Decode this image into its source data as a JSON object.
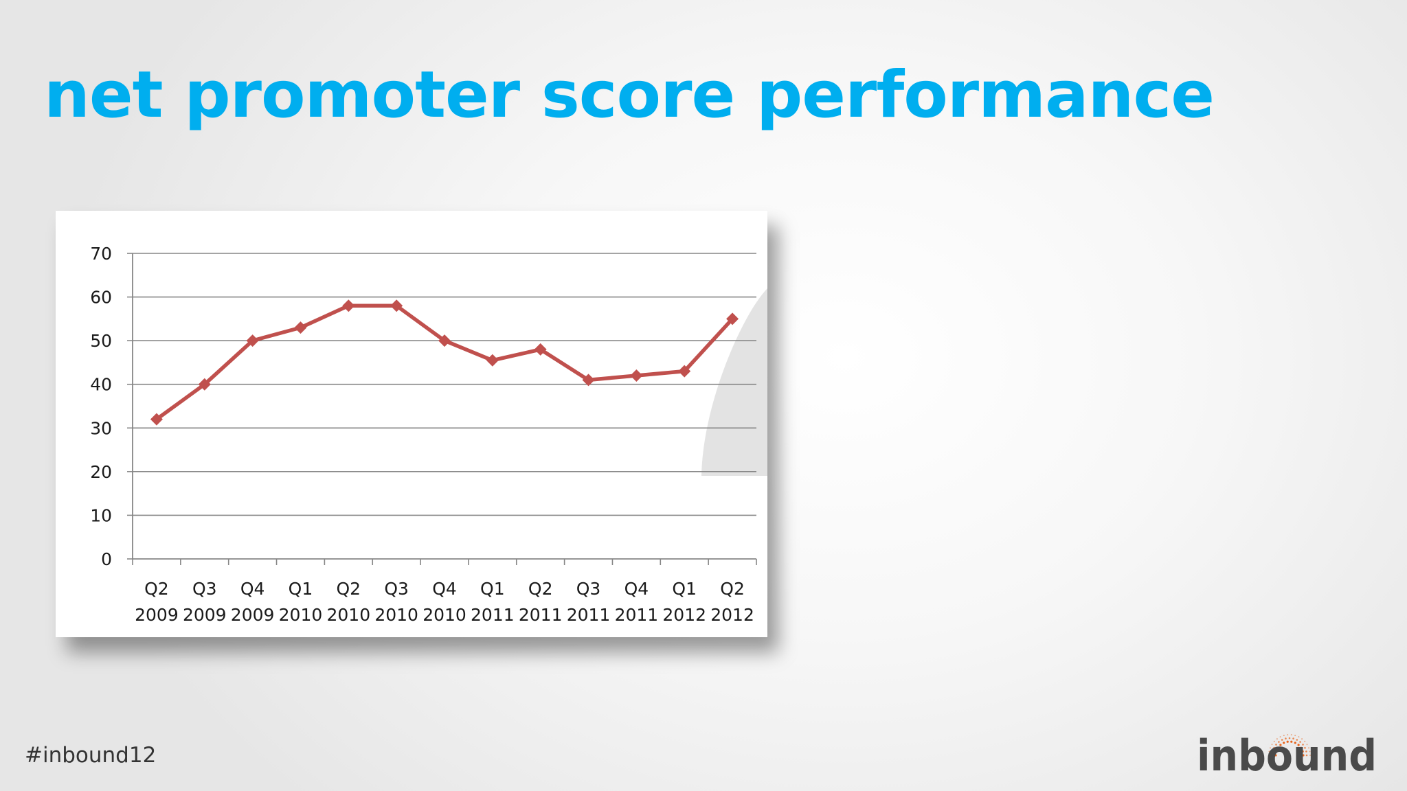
{
  "slide": {
    "title": "net promoter score performance",
    "hashtag": "#inbound12",
    "logo_text": "inbound"
  },
  "colors": {
    "title": "#00aeef",
    "series_line": "#c0504d",
    "gridline": "#868686",
    "logo_text": "#4a4a4a",
    "logo_accent": "#e8641b"
  },
  "chart_data": {
    "type": "line",
    "categories": [
      "Q2 2009",
      "Q3 2009",
      "Q4 2009",
      "Q1 2010",
      "Q2 2010",
      "Q3 2010",
      "Q4 2010",
      "Q1 2011",
      "Q2 2011",
      "Q3 2011",
      "Q4 2011",
      "Q1 2012",
      "Q2 2012"
    ],
    "category_lines": [
      [
        "Q2",
        "2009"
      ],
      [
        "Q3",
        "2009"
      ],
      [
        "Q4",
        "2009"
      ],
      [
        "Q1",
        "2010"
      ],
      [
        "Q2",
        "2010"
      ],
      [
        "Q3",
        "2010"
      ],
      [
        "Q4",
        "2010"
      ],
      [
        "Q1",
        "2011"
      ],
      [
        "Q2",
        "2011"
      ],
      [
        "Q3",
        "2011"
      ],
      [
        "Q4",
        "2011"
      ],
      [
        "Q1",
        "2012"
      ],
      [
        "Q2",
        "2012"
      ]
    ],
    "series": [
      {
        "values": [
          32,
          40,
          50,
          53,
          58,
          58,
          50,
          45.5,
          48,
          41,
          42,
          43,
          55
        ]
      }
    ],
    "ylim": [
      0,
      70
    ],
    "yticks": [
      0,
      10,
      20,
      30,
      40,
      50,
      60,
      70
    ],
    "grid": true,
    "legend": "none",
    "markers": "diamond"
  }
}
